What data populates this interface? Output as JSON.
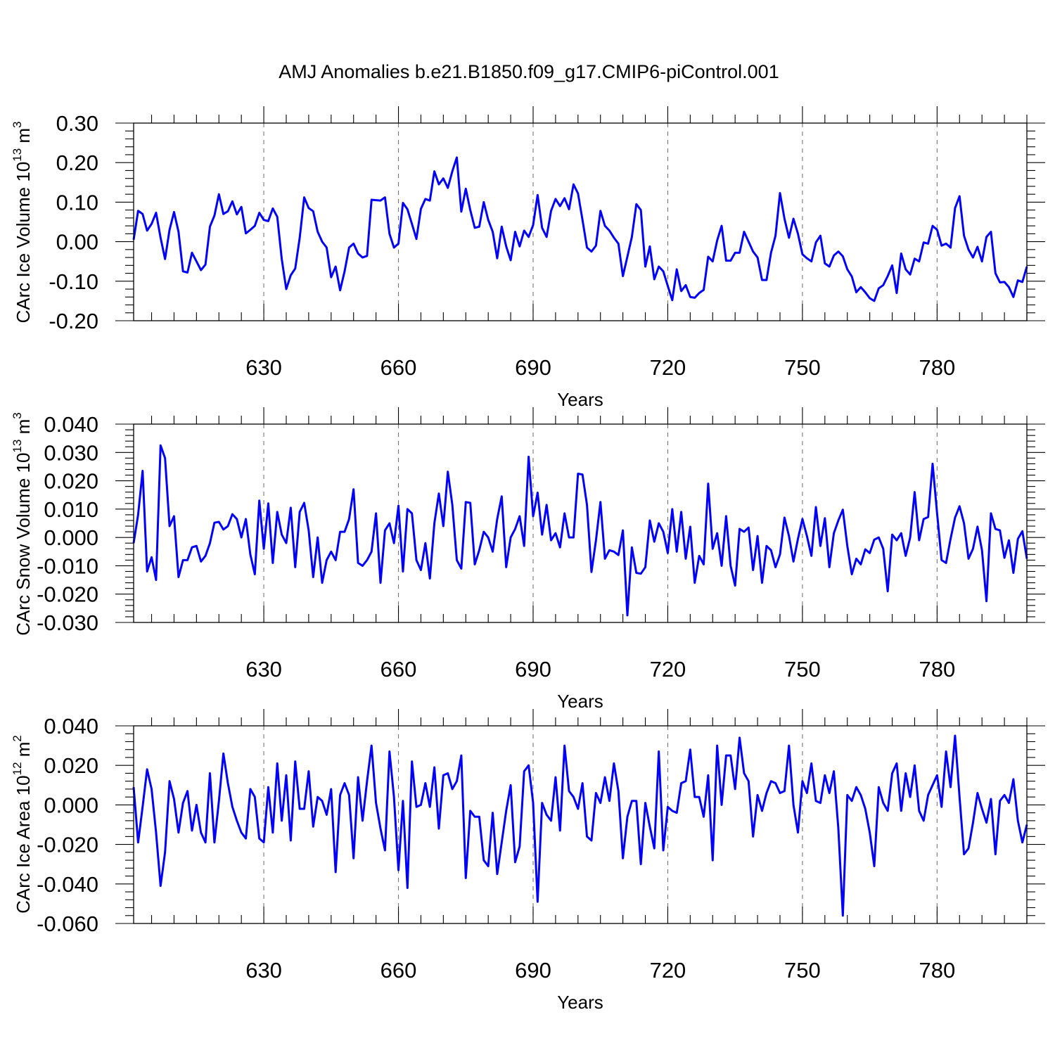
{
  "chart_data": {
    "title": "AMJ Anomalies b.e21.B1850.f09_g17.CMIP6-piControl.001",
    "panels": [
      {
        "type": "line",
        "ylabel": "CArc Ice Volume 10",
        "ylabel_exp": "13",
        "ylabel_unit": "m",
        "ylabel_unit_exp": "3",
        "xlabel": "Years",
        "xlim": [
          601,
          800
        ],
        "ylim": [
          -0.2,
          0.3
        ],
        "xticks": [
          630,
          660,
          690,
          720,
          750,
          780
        ],
        "xtick_labels": [
          "630",
          "660",
          "690",
          "720",
          "750",
          "780"
        ],
        "yticks": [
          -0.2,
          -0.1,
          0.0,
          0.1,
          0.2,
          0.3
        ],
        "ytick_labels": [
          "-0.20",
          "-0.10",
          "0.00",
          "0.10",
          "0.20",
          "0.30"
        ],
        "grid": "vertical dashed at major x ticks",
        "color": "#0000ff",
        "values": [
          0.005,
          0.078,
          0.07,
          0.028,
          0.045,
          0.073,
          0.01,
          -0.044,
          0.03,
          0.075,
          0.025,
          -0.075,
          -0.078,
          -0.028,
          -0.05,
          -0.072,
          -0.058,
          0.038,
          0.066,
          0.12,
          0.07,
          0.077,
          0.102,
          0.069,
          0.088,
          0.021,
          0.03,
          0.04,
          0.073,
          0.055,
          0.052,
          0.084,
          0.063,
          -0.044,
          -0.12,
          -0.085,
          -0.068,
          0.01,
          0.112,
          0.085,
          0.077,
          0.025,
          0.0,
          -0.015,
          -0.09,
          -0.063,
          -0.123,
          -0.075,
          -0.015,
          -0.005,
          -0.03,
          -0.04,
          -0.036,
          0.106,
          0.105,
          0.104,
          0.112,
          0.02,
          -0.015,
          -0.005,
          0.098,
          0.082,
          0.045,
          0.007,
          0.083,
          0.108,
          0.104,
          0.178,
          0.145,
          0.16,
          0.136,
          0.178,
          0.213,
          0.076,
          0.134,
          0.08,
          0.035,
          0.038,
          0.1,
          0.055,
          0.025,
          -0.042,
          0.038,
          -0.012,
          -0.047,
          0.025,
          -0.012,
          0.028,
          0.012,
          0.042,
          0.118,
          0.035,
          0.012,
          0.078,
          0.108,
          0.09,
          0.11,
          0.082,
          0.145,
          0.122,
          0.055,
          -0.015,
          -0.025,
          -0.01,
          0.078,
          0.04,
          0.028,
          0.01,
          -0.005,
          -0.087,
          -0.038,
          0.012,
          0.095,
          0.08,
          -0.063,
          -0.012,
          -0.095,
          -0.063,
          -0.075,
          -0.112,
          -0.148,
          -0.07,
          -0.125,
          -0.11,
          -0.14,
          -0.142,
          -0.13,
          -0.122,
          -0.038,
          -0.05,
          0.003,
          0.04,
          -0.048,
          -0.048,
          -0.028,
          -0.028,
          0.025,
          0.0,
          -0.025,
          -0.04,
          -0.097,
          -0.097,
          -0.028,
          0.015,
          0.123,
          0.058,
          0.01,
          0.058,
          0.02,
          -0.032,
          -0.042,
          -0.05,
          -0.002,
          0.015,
          -0.055,
          -0.063,
          -0.035,
          -0.025,
          -0.037,
          -0.07,
          -0.088,
          -0.128,
          -0.115,
          -0.128,
          -0.143,
          -0.15,
          -0.118,
          -0.11,
          -0.087,
          -0.06,
          -0.13,
          -0.03,
          -0.07,
          -0.083,
          -0.043,
          -0.05,
          -0.002,
          -0.005,
          0.04,
          0.03,
          -0.01,
          -0.005,
          -0.015,
          0.085,
          0.115,
          0.015,
          -0.02,
          -0.04,
          -0.013,
          -0.05,
          0.012,
          0.025,
          -0.08,
          -0.103,
          -0.102,
          -0.115,
          -0.14,
          -0.098,
          -0.102,
          -0.063
        ]
      },
      {
        "type": "line",
        "ylabel": "CArc Snow Volume 10",
        "ylabel_exp": "13",
        "ylabel_unit": "m",
        "ylabel_unit_exp": "3",
        "xlabel": "Years",
        "xlim": [
          601,
          800
        ],
        "ylim": [
          -0.03,
          0.04
        ],
        "xticks": [
          630,
          660,
          690,
          720,
          750,
          780
        ],
        "xtick_labels": [
          "630",
          "660",
          "690",
          "720",
          "750",
          "780"
        ],
        "yticks": [
          -0.03,
          -0.02,
          -0.01,
          0.0,
          0.01,
          0.02,
          0.03,
          0.04
        ],
        "ytick_labels": [
          "-0.030",
          "-0.020",
          "-0.010",
          "0.000",
          "0.010",
          "0.020",
          "0.030",
          "0.040"
        ],
        "grid": "vertical dashed at major x ticks",
        "color": "#0000ff",
        "values": [
          -0.002,
          0.008,
          0.0235,
          -0.012,
          -0.007,
          -0.015,
          0.0325,
          0.028,
          0.004,
          0.0075,
          -0.014,
          -0.008,
          -0.008,
          -0.0035,
          -0.003,
          -0.0085,
          -0.0065,
          -0.002,
          0.0052,
          0.0055,
          0.0028,
          0.004,
          0.0082,
          0.0065,
          0.0,
          0.0065,
          -0.006,
          -0.013,
          0.013,
          -0.004,
          0.012,
          -0.009,
          0.009,
          0.001,
          -0.002,
          0.0105,
          -0.0105,
          0.009,
          0.0122,
          0.0025,
          -0.014,
          0.0,
          -0.016,
          -0.008,
          -0.005,
          -0.008,
          0.002,
          0.002,
          0.0065,
          0.017,
          -0.009,
          -0.01,
          -0.008,
          -0.005,
          0.0085,
          -0.016,
          0.0025,
          0.005,
          -0.002,
          0.0112,
          -0.012,
          0.01,
          0.0085,
          -0.008,
          -0.0115,
          -0.002,
          -0.0145,
          0.005,
          0.0155,
          0.004,
          0.0232,
          0.0115,
          -0.008,
          -0.011,
          0.0125,
          0.0122,
          -0.0095,
          -0.0045,
          0.002,
          0.0,
          -0.005,
          0.0065,
          0.0145,
          -0.0105,
          0.0,
          0.003,
          0.0075,
          -0.003,
          0.0285,
          0.0075,
          0.0158,
          0.001,
          0.0115,
          -0.001,
          0.0015,
          -0.0035,
          0.0085,
          0.0,
          0.0,
          0.0225,
          0.0222,
          0.0115,
          -0.0122,
          -0.001,
          0.0125,
          -0.0075,
          -0.0045,
          -0.005,
          -0.0062,
          0.0025,
          -0.0275,
          -0.0035,
          -0.0125,
          -0.0128,
          -0.0105,
          0.006,
          -0.0015,
          0.005,
          0.002,
          -0.0055,
          0.01,
          -0.005,
          0.009,
          -0.0075,
          0.0038,
          -0.016,
          -0.0065,
          -0.0095,
          0.019,
          -0.004,
          0.0015,
          -0.01,
          0.0075,
          -0.01,
          -0.017,
          0.003,
          0.002,
          0.0035,
          -0.0115,
          0.0005,
          -0.016,
          -0.003,
          -0.0045,
          -0.0105,
          -0.006,
          0.007,
          0.0005,
          -0.0085,
          -0.0005,
          0.0065,
          0.0005,
          -0.0065,
          0.0107,
          -0.003,
          0.0068,
          -0.0105,
          0.0015,
          0.006,
          0.0098,
          -0.003,
          -0.013,
          -0.0075,
          -0.0095,
          -0.0042,
          -0.0055,
          -0.0008,
          0.0,
          -0.004,
          -0.019,
          0.001,
          -0.001,
          0.0015,
          -0.0065,
          0.0,
          0.016,
          -0.001,
          0.0065,
          0.0072,
          0.026,
          0.0085,
          -0.008,
          -0.009,
          -0.0005,
          0.007,
          0.011,
          0.005,
          -0.0075,
          -0.004,
          0.0038,
          -0.0045,
          -0.0225,
          0.0085,
          0.003,
          0.0025,
          -0.0072,
          -0.001,
          -0.0125,
          -0.0005,
          0.0022,
          -0.0075
        ]
      },
      {
        "type": "line",
        "ylabel": "CArc Ice Area 10",
        "ylabel_exp": "12",
        "ylabel_unit": "m",
        "ylabel_unit_exp": "2",
        "xlabel": "Years",
        "xlim": [
          601,
          800
        ],
        "ylim": [
          -0.06,
          0.04
        ],
        "xticks": [
          630,
          660,
          690,
          720,
          750,
          780
        ],
        "xtick_labels": [
          "630",
          "660",
          "690",
          "720",
          "750",
          "780"
        ],
        "yticks": [
          -0.06,
          -0.04,
          -0.02,
          0.0,
          0.02,
          0.04
        ],
        "ytick_labels": [
          "-0.060",
          "-0.040",
          "-0.020",
          "0.000",
          "0.020",
          "0.040"
        ],
        "grid": "vertical dashed at major x ticks",
        "color": "#0000ff",
        "values": [
          0.009,
          -0.019,
          -0.001,
          0.018,
          0.008,
          -0.014,
          -0.041,
          -0.024,
          0.012,
          0.003,
          -0.014,
          0.001,
          0.007,
          -0.013,
          0.0,
          -0.014,
          -0.019,
          0.016,
          -0.019,
          0.002,
          0.026,
          0.011,
          -0.001,
          -0.008,
          -0.014,
          -0.017,
          0.008,
          0.004,
          -0.017,
          -0.019,
          0.009,
          -0.014,
          0.021,
          -0.008,
          0.015,
          -0.018,
          0.022,
          -0.002,
          -0.002,
          0.017,
          -0.011,
          0.004,
          0.002,
          -0.005,
          0.008,
          -0.034,
          0.005,
          0.011,
          0.005,
          -0.027,
          0.014,
          -0.008,
          0.012,
          0.03,
          0.001,
          -0.012,
          -0.023,
          0.027,
          0.004,
          -0.033,
          0.002,
          -0.042,
          0.022,
          -0.001,
          0.0,
          0.011,
          -0.001,
          0.019,
          -0.012,
          0.015,
          0.016,
          0.008,
          0.012,
          0.025,
          -0.037,
          -0.003,
          -0.006,
          -0.006,
          -0.028,
          -0.031,
          -0.004,
          -0.035,
          -0.019,
          -0.003,
          0.01,
          -0.029,
          -0.021,
          0.017,
          0.02,
          0.001,
          -0.049,
          0.001,
          -0.005,
          -0.008,
          0.014,
          -0.013,
          0.03,
          0.007,
          0.004,
          -0.002,
          0.011,
          -0.016,
          -0.018,
          0.006,
          0.001,
          0.014,
          0.002,
          0.021,
          0.007,
          -0.027,
          -0.006,
          0.002,
          0.002,
          -0.03,
          0.001,
          -0.011,
          -0.022,
          0.027,
          -0.023,
          -0.001,
          -0.003,
          -0.004,
          0.011,
          0.012,
          0.028,
          0.004,
          0.004,
          -0.006,
          0.015,
          -0.028,
          0.03,
          0.0,
          0.025,
          0.025,
          0.008,
          0.034,
          0.016,
          0.012,
          -0.016,
          0.005,
          -0.003,
          0.006,
          0.012,
          0.011,
          0.006,
          0.007,
          0.03,
          0.0,
          -0.014,
          0.012,
          0.006,
          0.021,
          0.002,
          0.001,
          0.015,
          0.006,
          0.017,
          -0.012,
          -0.056,
          0.005,
          0.002,
          0.009,
          0.005,
          -0.002,
          -0.014,
          -0.031,
          0.009,
          0.001,
          -0.003,
          0.016,
          0.021,
          -0.003,
          0.016,
          0.004,
          0.02,
          -0.003,
          -0.008,
          0.005,
          0.01,
          0.015,
          -0.001,
          0.027,
          0.009,
          0.035,
          0.004,
          -0.025,
          -0.022,
          -0.009,
          0.006,
          -0.002,
          -0.009,
          0.003,
          -0.025,
          0.002,
          0.005,
          0.001,
          0.013,
          -0.008,
          -0.019,
          -0.01
        ]
      }
    ]
  }
}
